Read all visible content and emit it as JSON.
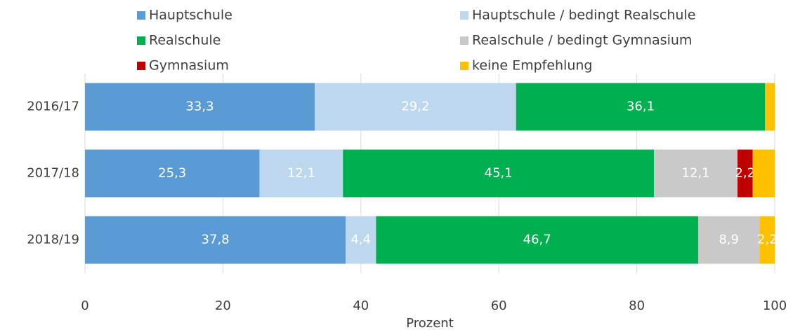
{
  "chart_data": {
    "type": "stacked_barh",
    "categories": [
      "2016/17",
      "2017/18",
      "2018/19"
    ],
    "xlabel": "Prozent",
    "xlim": [
      0,
      100
    ],
    "xticks": [
      0,
      20,
      40,
      60,
      80,
      100
    ],
    "grid": true,
    "legend": "top",
    "series": [
      {
        "name": "Hauptschule",
        "color": "#5b9bd5",
        "values": [
          33.3,
          25.3,
          37.8
        ],
        "value_labels": [
          "33,3",
          "25,3",
          "37,8"
        ]
      },
      {
        "name": "Hauptschule / bedingt Realschule",
        "color": "#bdd7ee",
        "values": [
          29.2,
          12.1,
          4.4
        ],
        "value_labels": [
          "29,2",
          "12,1",
          "4,4"
        ]
      },
      {
        "name": "Realschule",
        "color": "#00b050",
        "values": [
          36.1,
          45.1,
          46.7
        ],
        "value_labels": [
          "36,1",
          "45,1",
          "46,7"
        ]
      },
      {
        "name": "Realschule / bedingt Gymnasium",
        "color": "#c9c9c9",
        "values": [
          0,
          12.1,
          8.9
        ],
        "value_labels": [
          null,
          "12,1",
          "8,9"
        ]
      },
      {
        "name": "Gymnasium",
        "color": "#c00000",
        "values": [
          0,
          2.2,
          0
        ],
        "value_labels": [
          null,
          "2,2",
          null
        ]
      },
      {
        "name": "keine Empfehlung",
        "color": "#ffc000",
        "values": [
          1.4,
          3.2,
          2.2
        ],
        "value_labels": [
          null,
          null,
          "2,2"
        ]
      }
    ]
  }
}
